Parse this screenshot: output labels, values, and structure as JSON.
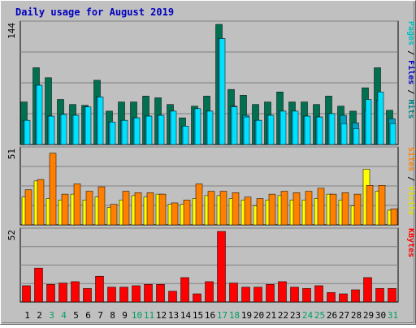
{
  "chart_data": {
    "type": "bar",
    "title": "Daily usage for August 2019",
    "colors": {
      "background": "#C0C0C0",
      "title": "#0000C0",
      "hits": "#008080",
      "hits_face": "#007050",
      "files": "#00C0FF",
      "pages": "#00F0FF",
      "visits": "#FFFF00",
      "sites": "#FF8000",
      "kbytes": "#FF0000",
      "weekend_label": "#00A060",
      "weekday_label": "#000000"
    },
    "categories": [
      "1",
      "2",
      "3",
      "4",
      "5",
      "6",
      "7",
      "8",
      "9",
      "10",
      "11",
      "12",
      "13",
      "14",
      "15",
      "16",
      "17",
      "18",
      "19",
      "20",
      "21",
      "22",
      "23",
      "24",
      "25",
      "26",
      "27",
      "28",
      "29",
      "30",
      "31"
    ],
    "weekend_days": [
      "3",
      "4",
      "10",
      "11",
      "17",
      "18",
      "24",
      "25",
      "31"
    ],
    "panels": [
      {
        "id": "hits",
        "ymax_label": "144",
        "ylim": [
          0,
          144
        ],
        "right_label": [
          {
            "text": "Pages",
            "color": "#00C0C0"
          },
          {
            "text": " / ",
            "color": "#000000"
          },
          {
            "text": "Files",
            "color": "#0000C0"
          },
          {
            "text": " / ",
            "color": "#000000"
          },
          {
            "text": "Hits",
            "color": "#008080"
          }
        ],
        "series": [
          {
            "name": "Hits",
            "color": "#007050",
            "values": [
              51,
              92,
              80,
              54,
              48,
              47,
              77,
              40,
              51,
              51,
              58,
              56,
              48,
              32,
              46,
              58,
              144,
              66,
              59,
              48,
              51,
              63,
              51,
              51,
              48,
              58,
              46,
              40,
              68,
              92,
              41
            ]
          },
          {
            "name": "Files",
            "color": "#00A0C0",
            "values": [
              29,
              71,
              34,
              36,
              35,
              45,
              57,
              27,
              29,
              32,
              34,
              35,
              40,
              22,
              43,
              40,
              127,
              46,
              35,
              29,
              35,
              40,
              40,
              34,
              33,
              37,
              35,
              26,
              41,
              53,
              31
            ]
          },
          {
            "name": "Pages",
            "color": "#00E0FF",
            "values": [
              29,
              71,
              34,
              36,
              35,
              45,
              57,
              27,
              29,
              32,
              34,
              35,
              40,
              22,
              43,
              40,
              127,
              45,
              33,
              29,
              35,
              40,
              40,
              34,
              33,
              37,
              25,
              19,
              54,
              63,
              25
            ]
          }
        ]
      },
      {
        "id": "visits",
        "ymax_label": "51",
        "ylim": [
          0,
          51
        ],
        "right_label": [
          {
            "text": "Sites",
            "color": "#FF8000"
          },
          {
            "text": " / ",
            "color": "#000000"
          },
          {
            "text": "Visits",
            "color": "#E0E000"
          }
        ],
        "series": [
          {
            "name": "Visits",
            "color": "#FFFF00",
            "values": [
              19,
              30,
              18,
              17,
              21,
              17,
              19,
              12,
              17,
              20,
              19,
              21,
              14,
              14,
              18,
              20,
              20,
              18,
              17,
              13,
              17,
              20,
              17,
              17,
              18,
              21,
              17,
              13,
              38,
              23,
              10
            ]
          },
          {
            "name": "Sites",
            "color": "#FF8000",
            "values": [
              24,
              31,
              49,
              21,
              28,
              23,
              26,
              14,
              23,
              22,
              22,
              21,
              15,
              17,
              28,
              23,
              23,
              22,
              19,
              18,
              21,
              23,
              22,
              23,
              25,
              21,
              22,
              21,
              27,
              27,
              11
            ]
          }
        ]
      },
      {
        "id": "kbytes",
        "ymax_label": "52",
        "ylim": [
          0,
          52
        ],
        "right_label": [
          {
            "text": "KBytes",
            "color": "#FF0000"
          }
        ],
        "series": [
          {
            "name": "KBytes",
            "color": "#FF0000",
            "values": [
              12,
              25,
              13,
              14,
              15,
              10,
              19,
              11,
              11,
              12,
              13,
              13,
              8,
              18,
              6,
              15,
              52,
              14,
              11,
              11,
              13,
              15,
              11,
              10,
              12,
              7,
              6,
              9,
              18,
              10,
              10
            ]
          }
        ]
      }
    ]
  }
}
